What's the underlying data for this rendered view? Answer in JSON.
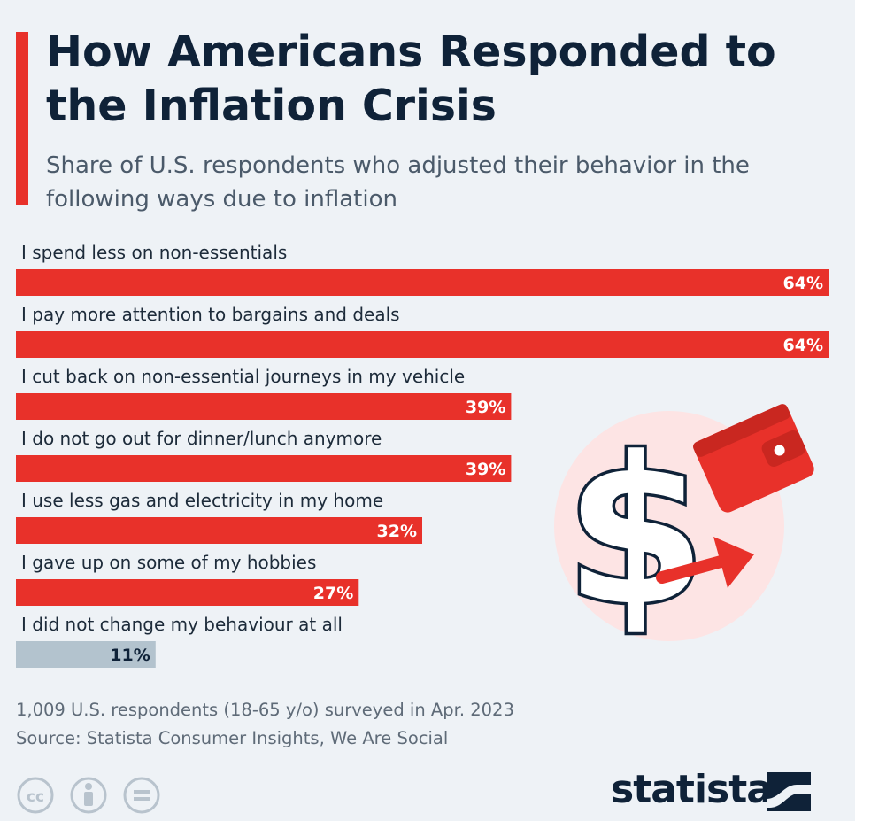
{
  "header": {
    "title": "How Americans Responded to the Inflation Crisis",
    "subtitle": "Share of U.S. respondents who adjusted their behavior in the following ways due to inflation"
  },
  "chart_data": {
    "type": "bar",
    "orientation": "horizontal",
    "title": "How Americans Responded to the Inflation Crisis",
    "subtitle": "Share of U.S. respondents who adjusted their behavior in the following ways due to inflation",
    "categories": [
      "I spend less on non-essentials",
      "I pay more attention to bargains and deals",
      "I cut back on non-essential journeys in my vehicle",
      "I do not go out for dinner/lunch anymore",
      "I use less gas and electricity in my home",
      "I gave up on some of my hobbies",
      "I did not change my behaviour at all"
    ],
    "values": [
      64,
      64,
      39,
      39,
      32,
      27,
      11
    ],
    "value_labels": [
      "64%",
      "64%",
      "39%",
      "39%",
      "32%",
      "27%",
      "11%"
    ],
    "unit": "%",
    "xlim": [
      0,
      64
    ],
    "grid": false,
    "legend": "none",
    "colors": [
      "#e8312a",
      "#e8312a",
      "#e8312a",
      "#e8312a",
      "#e8312a",
      "#e8312a",
      "#b3c3ce"
    ],
    "label_colors": [
      "#ffffff",
      "#ffffff",
      "#ffffff",
      "#ffffff",
      "#ffffff",
      "#ffffff",
      "#0f2238"
    ]
  },
  "illustration": {
    "icons": [
      "dollar-sign-icon",
      "wallet-icon",
      "arrow-right-icon"
    ],
    "circle_color": "#fde4e4",
    "accent_color": "#e8312a"
  },
  "footer": {
    "note": "1,009 U.S. respondents (18-65 y/o) surveyed in Apr. 2023",
    "source": "Source: Statista Consumer Insights, We Are Social",
    "license_icons": [
      "cc-icon",
      "attribution-icon",
      "no-derivatives-icon"
    ],
    "brand": "statista"
  }
}
